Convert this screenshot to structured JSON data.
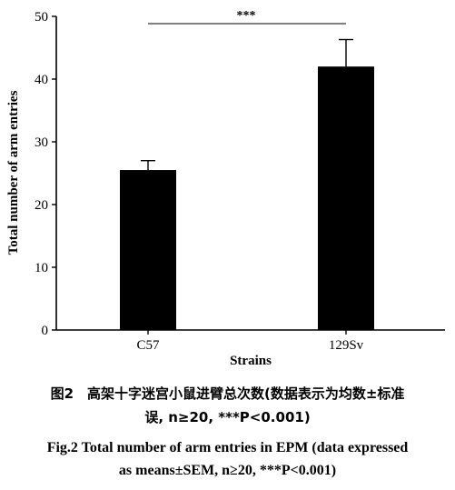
{
  "chart_data": {
    "type": "bar",
    "categories": [
      "C57",
      "129Sv"
    ],
    "values": [
      25.5,
      42
    ],
    "errors": [
      1.5,
      4.3
    ],
    "xlabel": "Strains",
    "ylabel": "Total number of arm entries",
    "ylim": [
      0,
      50
    ],
    "yticks": [
      "0",
      "10",
      "20",
      "30",
      "40",
      "50"
    ],
    "significance": "***",
    "bar_color": "#000000",
    "grid": false
  },
  "caption": {
    "cn_line1": "图2　高架十字迷宫小鼠进臂总次数(数据表示为均数±标准",
    "cn_line2": "误, n≥20, ***P<0.001)",
    "en_line1": "Fig.2    Total number of arm entries in EPM (data expressed",
    "en_line2": "as means±SEM, n≥20, ***P<0.001)"
  }
}
